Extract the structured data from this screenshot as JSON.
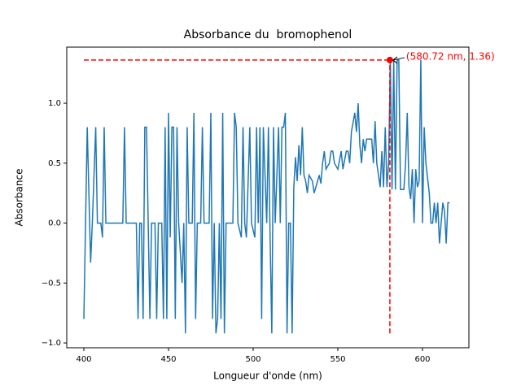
{
  "chart_data": {
    "type": "line",
    "title": "Absorbance du  bromophenol",
    "xlabel": "Longueur d'onde (nm)",
    "ylabel": "Absorbance",
    "xlim": [
      389.9,
      627.4
    ],
    "ylim": [
      -1.04,
      1.468
    ],
    "xticks": [
      400,
      450,
      500,
      550,
      600
    ],
    "yticks": [
      {
        "value": -1.0,
        "label": "−1.0"
      },
      {
        "value": -0.5,
        "label": "−0.5"
      },
      {
        "value": 0,
        "label": "0.0"
      },
      0.5,
      {
        "value": 1.0,
        "label": "1.0"
      }
    ],
    "series": [
      {
        "color": "#1f77b4",
        "x": [
          400,
          402,
          404,
          405,
          407,
          408,
          410,
          411,
          412,
          413,
          423,
          424,
          425,
          431,
          432,
          433,
          434,
          435,
          436,
          437,
          438,
          439,
          440,
          442,
          443,
          444,
          446,
          447,
          448,
          449,
          450,
          451,
          452,
          453,
          454,
          455,
          456,
          458,
          459,
          460,
          461,
          462,
          464,
          465,
          466,
          467,
          469,
          470,
          471,
          474,
          475,
          476,
          477,
          478,
          479,
          480,
          481,
          482,
          483,
          484,
          488,
          489,
          490,
          491,
          493,
          494,
          495,
          496,
          498,
          499,
          501,
          502,
          503,
          504,
          505,
          506,
          508,
          509,
          510,
          511,
          512,
          513,
          515,
          516,
          517,
          518,
          519,
          520,
          521,
          522,
          523,
          524,
          525,
          526,
          527,
          528,
          529,
          530,
          531,
          532,
          533,
          535,
          536,
          537,
          539,
          540,
          541,
          542,
          543,
          545,
          546,
          547,
          548,
          550,
          552,
          553,
          555,
          556,
          557,
          558,
          560,
          561,
          562,
          563,
          564,
          565,
          566,
          567,
          570,
          571,
          572,
          573,
          574,
          575,
          576,
          577,
          578,
          579,
          580,
          581,
          582,
          583,
          584,
          585,
          586,
          587,
          589,
          590,
          591,
          592,
          593,
          594,
          595,
          596,
          597,
          598,
          599,
          600,
          601,
          602,
          604,
          605,
          606,
          607,
          608,
          609,
          610,
          611,
          612,
          613,
          614,
          615,
          616
        ],
        "values": [
          -0.8,
          0.8,
          -0.33,
          0,
          0.8,
          0,
          0,
          -0.12,
          0.8,
          0,
          0,
          0.8,
          0,
          0,
          -0.8,
          0,
          0,
          -0.8,
          0.8,
          0.8,
          0,
          -0.8,
          0,
          0,
          -0.8,
          0,
          0,
          -0.8,
          0.8,
          -0.8,
          0.92,
          -0.12,
          0.8,
          0.8,
          -0.8,
          0.8,
          0,
          -0.5,
          0,
          -0.92,
          0.8,
          0,
          0,
          0.92,
          -0.8,
          0,
          0,
          0.8,
          0,
          0,
          0.92,
          -0.8,
          0,
          -0.92,
          -0.8,
          0,
          -0.8,
          0.92,
          -0.92,
          0,
          0,
          0.92,
          0.8,
          0,
          -0.12,
          0.8,
          0,
          -0.12,
          0.8,
          0,
          -0.12,
          0.8,
          0,
          0.8,
          -0.8,
          0.8,
          0,
          0.8,
          -0.12,
          -0.92,
          0.8,
          0,
          0.8,
          0,
          0.8,
          0.8,
          0.92,
          -0.92,
          0,
          0,
          -0.92,
          0.3,
          0.55,
          0.35,
          0.65,
          0.4,
          0.8,
          0.4,
          0.35,
          0.25,
          0.4,
          0.35,
          0.25,
          0.3,
          0.4,
          0.33,
          0.5,
          0.6,
          0.45,
          0.5,
          0.6,
          0.6,
          0.5,
          0.45,
          0.6,
          0.45,
          0.6,
          0.6,
          0.5,
          0.76,
          0.92,
          0.76,
          1.0,
          0.65,
          0.5,
          0.7,
          0.6,
          0.7,
          0.7,
          0.5,
          0.85,
          0.5,
          0.4,
          0.3,
          0.6,
          0.3,
          0.8,
          0.3,
          0.5,
          1.36,
          0.28,
          1.36,
          0.28,
          1.36,
          1.36,
          0.28,
          0.28,
          0.5,
          0.92,
          0.3,
          0.2,
          0.45,
          0,
          0.45,
          0.3,
          0.35,
          1.36,
          0,
          0.8,
          0.5,
          0.25,
          0,
          0,
          0.17,
          0,
          0.17,
          -0.17,
          0,
          0.17,
          0.1,
          -0.17,
          0.17,
          0.17
        ]
      }
    ],
    "annotation": {
      "text": "(580.72 nm, 1.36)",
      "x": 580.72,
      "y": 1.36,
      "line_xmin": 400,
      "line_ymin": -0.92,
      "color": "#ff0000"
    }
  }
}
